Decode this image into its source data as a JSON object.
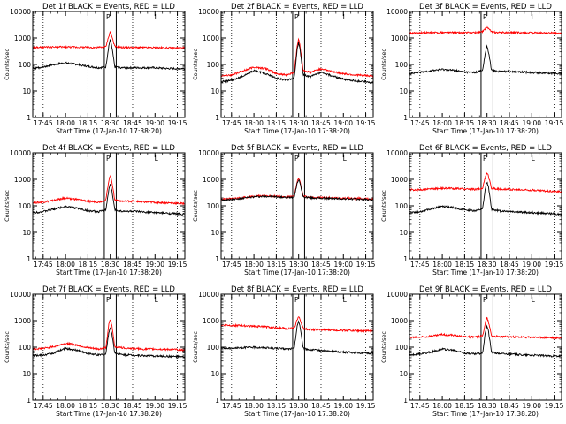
{
  "figure": {
    "colors": {
      "events": "#000000",
      "lld": "#ff0000",
      "axes": "#000000",
      "background": "#ffffff"
    },
    "x_tick_labels": [
      "17:45",
      "18:00",
      "18:15",
      "18:30",
      "18:45",
      "19:00",
      "19:15"
    ],
    "y_tick_labels": [
      "1",
      "10",
      "100",
      "1000",
      "10000"
    ],
    "xlabel": "Start Time (17-Jan-10 17:38:20)",
    "ylabel": "Counts/sec",
    "flag_labels": [
      "P",
      "L"
    ]
  },
  "chart_data": [
    {
      "type": "line",
      "title": "Det 1f BLACK = Events, RED = LLD",
      "y_scale": "log",
      "ylim": [
        1,
        10000
      ],
      "grid": false,
      "xlabel": "Start Time (17-Jan-10 17:38:20)",
      "ylabel": "Counts/sec",
      "x": [
        "17:38",
        "17:45",
        "17:52",
        "18:00",
        "18:08",
        "18:15",
        "18:22",
        "18:27",
        "18:29",
        "18:30",
        "18:31",
        "18:33",
        "18:38",
        "18:45",
        "18:52",
        "19:00",
        "19:08",
        "19:15",
        "19:20"
      ],
      "series": [
        {
          "values": [
            430,
            440,
            450,
            460,
            450,
            440,
            440,
            460,
            1200,
            1700,
            1200,
            470,
            440,
            440,
            430,
            430,
            420,
            420,
            420
          ]
        },
        {
          "values": [
            70,
            80,
            100,
            115,
            100,
            85,
            75,
            80,
            500,
            900,
            500,
            80,
            75,
            75,
            75,
            75,
            70,
            70,
            70
          ]
        }
      ]
    },
    {
      "type": "line",
      "title": "Det 2f BLACK = Events, RED = LLD",
      "y_scale": "log",
      "ylim": [
        1,
        10000
      ],
      "grid": false,
      "xlabel": "Start Time (17-Jan-10 17:38:20)",
      "ylabel": "Counts/sec",
      "x": [
        "17:38",
        "17:45",
        "17:52",
        "18:00",
        "18:08",
        "18:15",
        "18:22",
        "18:27",
        "18:29",
        "18:30",
        "18:31",
        "18:33",
        "18:38",
        "18:45",
        "18:52",
        "19:00",
        "19:08",
        "19:15",
        "19:20"
      ],
      "series": [
        {
          "values": [
            38,
            40,
            55,
            80,
            70,
            45,
            40,
            50,
            500,
            900,
            500,
            60,
            50,
            70,
            55,
            45,
            40,
            38,
            36
          ]
        },
        {
          "values": [
            22,
            25,
            35,
            60,
            45,
            30,
            26,
            30,
            350,
            700,
            350,
            40,
            35,
            50,
            38,
            28,
            24,
            22,
            20
          ]
        }
      ]
    },
    {
      "type": "line",
      "title": "Det 3f BLACK = Events, RED = LLD",
      "y_scale": "log",
      "ylim": [
        1,
        10000
      ],
      "grid": false,
      "xlabel": "Start Time (17-Jan-10 17:38:20)",
      "ylabel": "Counts/sec",
      "x": [
        "17:38",
        "17:45",
        "17:52",
        "18:00",
        "18:08",
        "18:15",
        "18:22",
        "18:27",
        "18:29",
        "18:30",
        "18:31",
        "18:33",
        "18:38",
        "18:45",
        "18:52",
        "19:00",
        "19:08",
        "19:15",
        "19:20"
      ],
      "series": [
        {
          "values": [
            1500,
            1550,
            1580,
            1600,
            1600,
            1580,
            1580,
            1700,
            2300,
            2700,
            2300,
            1700,
            1600,
            1600,
            1580,
            1560,
            1550,
            1530,
            1500
          ]
        },
        {
          "values": [
            45,
            50,
            58,
            65,
            60,
            52,
            50,
            60,
            300,
            500,
            300,
            60,
            55,
            55,
            52,
            50,
            48,
            46,
            45
          ]
        }
      ]
    },
    {
      "type": "line",
      "title": "Det 4f BLACK = Events, RED = LLD",
      "y_scale": "log",
      "ylim": [
        1,
        10000
      ],
      "grid": false,
      "xlabel": "Start Time (17-Jan-10 17:38:20)",
      "ylabel": "Counts/sec",
      "x": [
        "17:38",
        "17:45",
        "17:52",
        "18:00",
        "18:08",
        "18:15",
        "18:22",
        "18:27",
        "18:29",
        "18:30",
        "18:31",
        "18:33",
        "18:38",
        "18:45",
        "18:52",
        "19:00",
        "19:08",
        "19:15",
        "19:20"
      ],
      "series": [
        {
          "values": [
            130,
            140,
            160,
            200,
            175,
            150,
            140,
            160,
            900,
            1400,
            900,
            170,
            150,
            150,
            140,
            135,
            130,
            125,
            120
          ]
        },
        {
          "values": [
            55,
            60,
            75,
            95,
            80,
            65,
            60,
            70,
            400,
            650,
            400,
            70,
            62,
            62,
            58,
            55,
            52,
            50,
            48
          ]
        }
      ]
    },
    {
      "type": "line",
      "title": "Det 5f BLACK = Events, RED = LLD",
      "y_scale": "log",
      "ylim": [
        1,
        10000
      ],
      "grid": false,
      "xlabel": "Start Time (17-Jan-10 17:38:20)",
      "ylabel": "Counts/sec",
      "x": [
        "17:38",
        "17:45",
        "17:52",
        "18:00",
        "18:08",
        "18:15",
        "18:22",
        "18:27",
        "18:29",
        "18:30",
        "18:31",
        "18:33",
        "18:38",
        "18:45",
        "18:52",
        "19:00",
        "19:08",
        "19:15",
        "19:20"
      ],
      "series": [
        {
          "values": [
            180,
            185,
            200,
            230,
            240,
            230,
            215,
            230,
            800,
            1150,
            800,
            230,
            210,
            205,
            200,
            195,
            190,
            185,
            180
          ]
        },
        {
          "values": [
            170,
            175,
            190,
            220,
            230,
            220,
            205,
            220,
            700,
            1000,
            700,
            220,
            200,
            195,
            190,
            185,
            180,
            175,
            170
          ]
        }
      ]
    },
    {
      "type": "line",
      "title": "Det 6f BLACK = Events, RED = LLD",
      "y_scale": "log",
      "ylim": [
        1,
        10000
      ],
      "grid": false,
      "xlabel": "Start Time (17-Jan-10 17:38:20)",
      "ylabel": "Counts/sec",
      "x": [
        "17:38",
        "17:45",
        "17:52",
        "18:00",
        "18:08",
        "18:15",
        "18:22",
        "18:27",
        "18:29",
        "18:30",
        "18:31",
        "18:33",
        "18:38",
        "18:45",
        "18:52",
        "19:00",
        "19:08",
        "19:15",
        "19:20"
      ],
      "series": [
        {
          "values": [
            400,
            410,
            430,
            460,
            450,
            430,
            420,
            450,
            1300,
            1800,
            1300,
            460,
            430,
            420,
            400,
            390,
            370,
            350,
            340
          ]
        },
        {
          "values": [
            55,
            60,
            75,
            95,
            85,
            70,
            65,
            75,
            500,
            800,
            500,
            75,
            65,
            62,
            58,
            55,
            52,
            50,
            48
          ]
        }
      ]
    },
    {
      "type": "line",
      "title": "Det 7f BLACK = Events, RED = LLD",
      "y_scale": "log",
      "ylim": [
        1,
        10000
      ],
      "grid": false,
      "xlabel": "Start Time (17-Jan-10 17:38:20)",
      "ylabel": "Counts/sec",
      "x": [
        "17:38",
        "17:45",
        "17:52",
        "18:00",
        "18:08",
        "18:15",
        "18:22",
        "18:27",
        "18:29",
        "18:30",
        "18:31",
        "18:33",
        "18:38",
        "18:45",
        "18:52",
        "19:00",
        "19:08",
        "19:15",
        "19:20"
      ],
      "series": [
        {
          "values": [
            85,
            90,
            105,
            140,
            120,
            95,
            85,
            95,
            700,
            1100,
            700,
            105,
            95,
            90,
            85,
            85,
            82,
            80,
            78
          ]
        },
        {
          "values": [
            48,
            50,
            60,
            90,
            75,
            58,
            50,
            55,
            350,
            550,
            350,
            60,
            52,
            50,
            48,
            46,
            45,
            44,
            42
          ]
        }
      ]
    },
    {
      "type": "line",
      "title": "Det 8f BLACK = Events, RED = LLD",
      "y_scale": "log",
      "ylim": [
        1,
        10000
      ],
      "grid": false,
      "xlabel": "Start Time (17-Jan-10 17:38:20)",
      "ylabel": "Counts/sec",
      "x": [
        "17:38",
        "17:45",
        "17:52",
        "18:00",
        "18:08",
        "18:15",
        "18:22",
        "18:27",
        "18:29",
        "18:30",
        "18:31",
        "18:33",
        "18:38",
        "18:45",
        "18:52",
        "19:00",
        "19:08",
        "19:15",
        "19:20"
      ],
      "series": [
        {
          "values": [
            680,
            660,
            640,
            620,
            580,
            540,
            500,
            520,
            1100,
            1400,
            1100,
            500,
            460,
            450,
            440,
            430,
            420,
            410,
            400
          ]
        },
        {
          "values": [
            90,
            92,
            95,
            100,
            95,
            90,
            85,
            90,
            600,
            1000,
            600,
            90,
            80,
            75,
            70,
            65,
            62,
            60,
            58
          ]
        }
      ]
    },
    {
      "type": "line",
      "title": "Det 9f BLACK = Events, RED = LLD",
      "y_scale": "log",
      "ylim": [
        1,
        10000
      ],
      "grid": false,
      "xlabel": "Start Time (17-Jan-10 17:38:20)",
      "ylabel": "Counts/sec",
      "x": [
        "17:38",
        "17:45",
        "17:52",
        "18:00",
        "18:08",
        "18:15",
        "18:22",
        "18:27",
        "18:29",
        "18:30",
        "18:31",
        "18:33",
        "18:38",
        "18:45",
        "18:52",
        "19:00",
        "19:08",
        "19:15",
        "19:20"
      ],
      "series": [
        {
          "values": [
            230,
            240,
            260,
            300,
            280,
            250,
            240,
            260,
            900,
            1300,
            900,
            270,
            250,
            245,
            240,
            235,
            230,
            225,
            220
          ]
        },
        {
          "values": [
            50,
            55,
            65,
            85,
            75,
            60,
            55,
            60,
            400,
            650,
            400,
            65,
            58,
            55,
            52,
            50,
            48,
            46,
            45
          ]
        }
      ]
    }
  ]
}
